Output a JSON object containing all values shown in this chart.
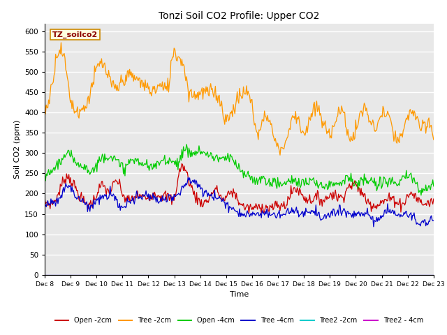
{
  "title": "Tonzi Soil CO2 Profile: Upper CO2",
  "xlabel": "Time",
  "ylabel": "Soil CO2 (ppm)",
  "ylim": [
    0,
    620
  ],
  "yticks": [
    0,
    50,
    100,
    150,
    200,
    250,
    300,
    350,
    400,
    450,
    500,
    550,
    600
  ],
  "legend_label": "TZ_soilco2",
  "legend_entries": [
    "Open -2cm",
    "Tree -2cm",
    "Open -4cm",
    "Tree -4cm",
    "Tree2 -2cm",
    "Tree2 - 4cm"
  ],
  "series_colors": [
    "#cc0000",
    "#ff9900",
    "#00cc00",
    "#0000cc",
    "#00cccc",
    "#cc00cc"
  ],
  "plot_bg_color": "#e8e8e8",
  "grid_color": "#ffffff",
  "n_points": 500,
  "x_start": 8,
  "x_end": 23,
  "xtick_positions": [
    8,
    9,
    10,
    11,
    12,
    13,
    14,
    15,
    16,
    17,
    18,
    19,
    20,
    21,
    22,
    23
  ],
  "xtick_labels": [
    "Dec 8",
    "Dec 9",
    "Dec 10",
    "Dec 11",
    "Dec 12",
    "Dec 13",
    "Dec 14",
    "Dec 15",
    "Dec 16",
    "Dec 17",
    "Dec 18",
    "Dec 19",
    "Dec 20",
    "Dec 21",
    "Dec 22",
    "Dec 23"
  ]
}
